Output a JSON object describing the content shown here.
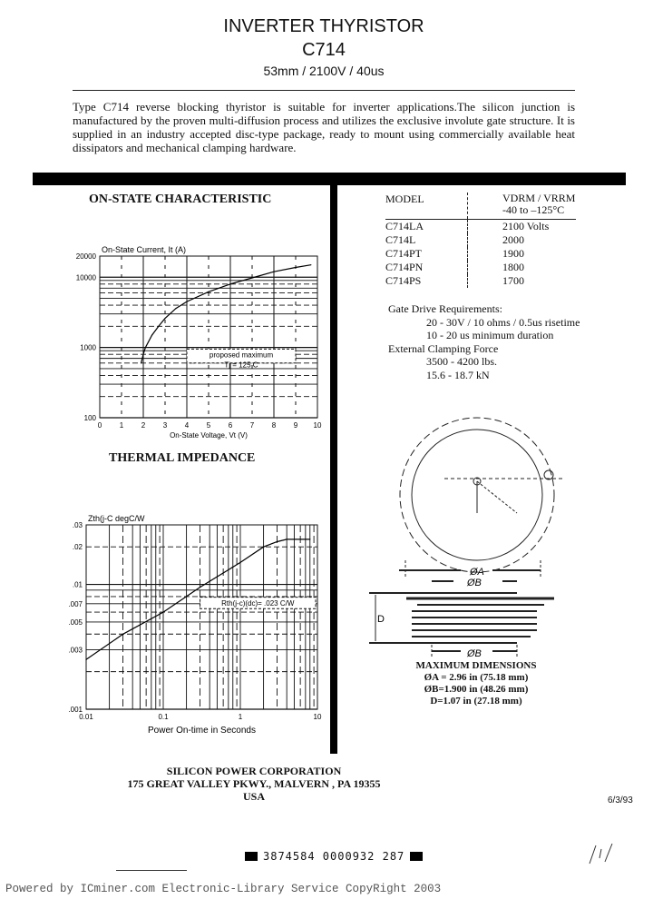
{
  "header": {
    "title": "INVERTER THYRISTOR",
    "model": "C714",
    "subtitle": "53mm / 2100V / 40us"
  },
  "intro": "Type C714 reverse blocking thyristor is suitable for inverter applications.The silicon junction is manufactured by the proven multi-diffusion process and utilizes the exclusive involute gate structure. It is supplied in an industry accepted disc-type package, ready to mount using commercially available heat dissipators and mechanical clamping hardware.",
  "sections": {
    "on_state": "ON-STATE CHARACTERISTIC",
    "thermal": "THERMAL IMPEDANCE"
  },
  "model_table": {
    "col1": "MODEL",
    "col2_main": "VDRM / VRRM",
    "col2_range": "-40 to –125°C",
    "rows": [
      {
        "model": "C714LA",
        "value": "2100 Volts"
      },
      {
        "model": "C714L",
        "value": "2000"
      },
      {
        "model": "C714PT",
        "value": "1900"
      },
      {
        "model": "C714PN",
        "value": "1800"
      },
      {
        "model": "C714PS",
        "value": "1700"
      }
    ]
  },
  "gate": {
    "label": "Gate Drive Requirements:",
    "line1": "20 - 30V / 10 ohms / 0.5us risetime",
    "line2": "10 - 20 us minimum duration",
    "clamp_label": "External Clamping Force",
    "clamp1": "3500 - 4200 lbs.",
    "clamp2": "15.6 - 18.7 kN"
  },
  "drawing": {
    "label_a": "ØA",
    "label_b": "ØB",
    "label_d": "D"
  },
  "dimensions": {
    "title": "MAXIMUM DIMENSIONS",
    "a": "ØA = 2.96 in (75.18 mm)",
    "b": "ØB=1.900 in (48.26 mm)",
    "d": "D=1.07 in (27.18 mm)"
  },
  "footer": {
    "company": "SILICON POWER CORPORATION",
    "address": "175 GREAT VALLEY PKWY., MALVERN , PA 19355",
    "country": "USA",
    "date": "6/3/93",
    "barcode": "3874584 0000932 287",
    "watermark": "Powered by ICminer.com Electronic-Library Service CopyRight 2003"
  },
  "chart_data": [
    {
      "type": "line",
      "ylabel": "On-State Current, It (A)",
      "xlabel": "On-State Voltage, Vt (V)",
      "xlim": [
        0,
        10
      ],
      "ylim": [
        100,
        20000
      ],
      "yscale": "log",
      "x_ticks": [
        "0",
        "1",
        "2",
        "3",
        "4",
        "5",
        "6",
        "7",
        "8",
        "9",
        "10"
      ],
      "y_ticks": [
        {
          "value": 100,
          "label": "100"
        },
        {
          "value": 1000,
          "label": "1000"
        },
        {
          "value": 10000,
          "label": "10000"
        },
        {
          "value": 20000,
          "label": "20000"
        }
      ],
      "annotation": [
        "proposed maximum",
        "Tj = 125 C"
      ],
      "grid": true,
      "x": [
        1.9,
        2.0,
        2.1,
        2.4,
        2.7,
        3.0,
        3.5,
        4.0,
        5.0,
        6.0,
        7.0,
        8.0,
        9.0,
        9.7
      ],
      "y": [
        600,
        800,
        1000,
        1500,
        2000,
        2600,
        3600,
        4500,
        6200,
        8000,
        9800,
        12000,
        13800,
        15000
      ]
    },
    {
      "type": "line",
      "ylabel": "Zth(j-C degC/W",
      "xlabel": "Power On-time in Seconds",
      "xlim": [
        0.01,
        10
      ],
      "ylim": [
        0.001,
        0.03
      ],
      "xscale": "log",
      "yscale": "log",
      "x_ticks": [
        {
          "value": 0.01,
          "label": "0.01"
        },
        {
          "value": 0.1,
          "label": "0.1"
        },
        {
          "value": 1,
          "label": "1"
        },
        {
          "value": 10,
          "label": "10"
        }
      ],
      "y_ticks": [
        {
          "value": 0.001,
          "label": ".001"
        },
        {
          "value": 0.003,
          "label": ".003"
        },
        {
          "value": 0.005,
          "label": ".005"
        },
        {
          "value": 0.007,
          "label": ".007"
        },
        {
          "value": 0.01,
          "label": ".01"
        },
        {
          "value": 0.02,
          "label": ".02"
        },
        {
          "value": 0.03,
          "label": ".03"
        }
      ],
      "annotation": [
        "Rth(j-c)(dc)= .023 C/W"
      ],
      "grid": true,
      "x": [
        0.01,
        0.03,
        0.1,
        0.3,
        1,
        2,
        3,
        4,
        8
      ],
      "y": [
        0.0025,
        0.004,
        0.006,
        0.0095,
        0.015,
        0.02,
        0.022,
        0.023,
        0.023
      ]
    }
  ]
}
